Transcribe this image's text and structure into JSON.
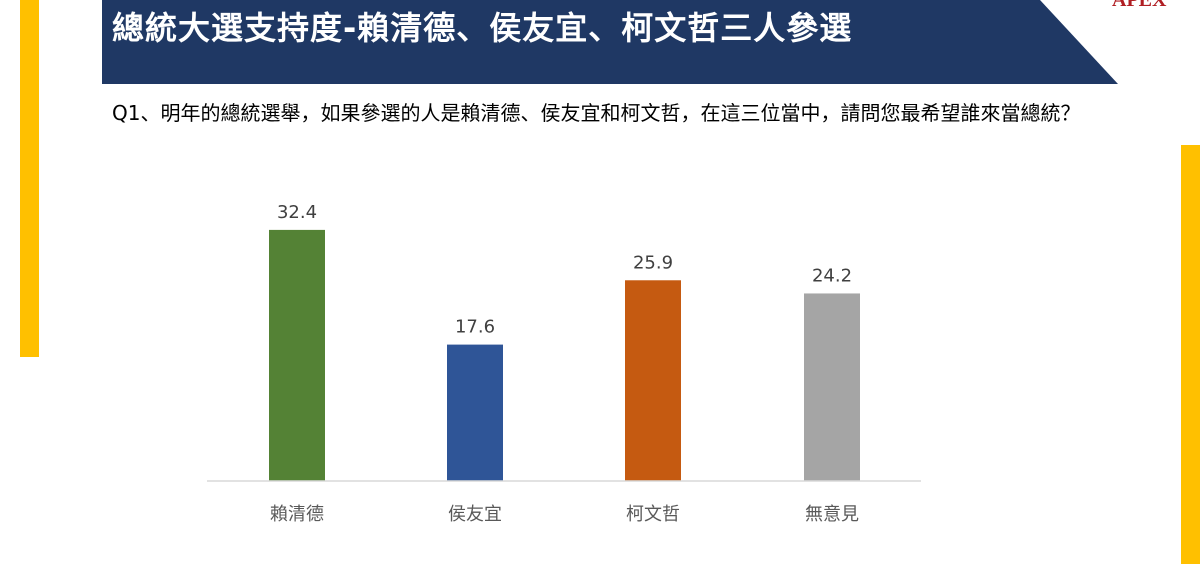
{
  "header": {
    "title": "總統大選支持度-賴清德、侯友宜、柯文哲三人參選",
    "banner_color": "#1F3864",
    "logo_text": "APEX"
  },
  "question": {
    "text": "Q1、明年的總統選舉，如果參選的人是賴清德、侯友宜和柯文哲，在這三位當中，請問您最希望誰來當總統？"
  },
  "accent_color": "#FFC000",
  "chart_data": {
    "type": "bar",
    "categories": [
      "賴清德",
      "侯友宜",
      "柯文哲",
      "無意見"
    ],
    "values": [
      32.4,
      17.6,
      25.9,
      24.2
    ],
    "value_labels": [
      "32.4",
      "17.6",
      "25.9",
      "24.2"
    ],
    "colors": [
      "#548235",
      "#2F5597",
      "#C55A11",
      "#A5A5A5"
    ],
    "title": "",
    "xlabel": "",
    "ylabel": "",
    "ylim": [
      0,
      35
    ],
    "grid": false,
    "legend": "none"
  }
}
